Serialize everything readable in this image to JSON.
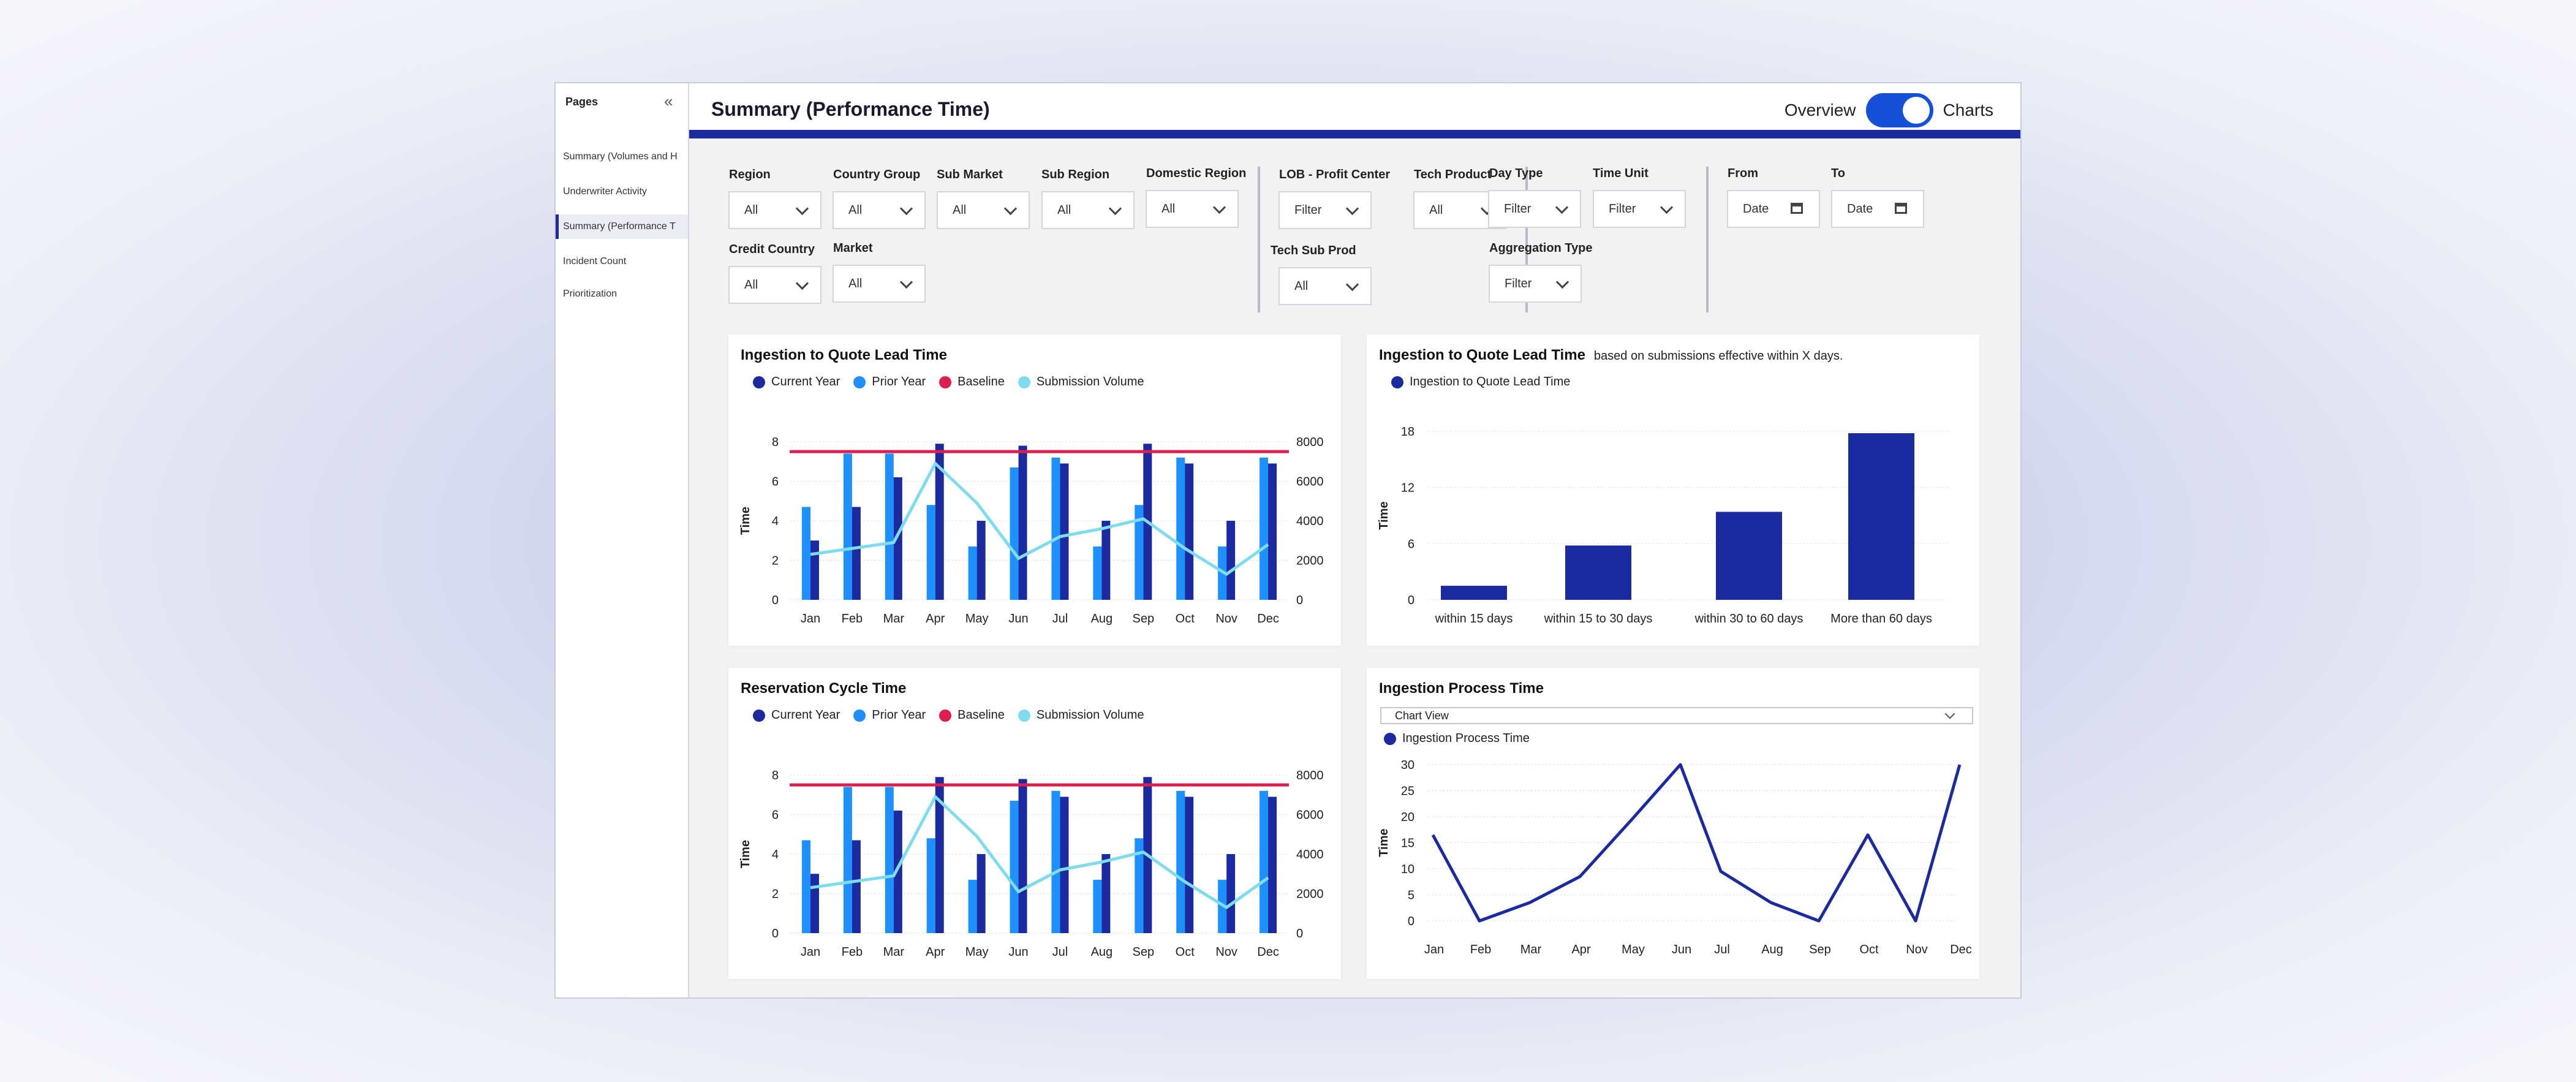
{
  "sidebar": {
    "title": "Pages",
    "items": [
      {
        "label": "Summary (Volumes and H",
        "active": false
      },
      {
        "label": "Underwriter Activity",
        "active": false
      },
      {
        "label": "Summary (Performance T",
        "active": true
      },
      {
        "label": "Incident Count",
        "active": false
      },
      {
        "label": "Prioritization",
        "active": false
      }
    ]
  },
  "header": {
    "title": "Summary (Performance Time)",
    "toggle_left": "Overview",
    "toggle_right": "Charts"
  },
  "filters": {
    "region": {
      "label": "Region",
      "value": "All"
    },
    "country_group": {
      "label": "Country Group",
      "value": "All"
    },
    "sub_market": {
      "label": "Sub Market",
      "value": "All"
    },
    "sub_region": {
      "label": "Sub Region",
      "value": "All"
    },
    "domestic_region": {
      "label": "Domestic Region",
      "value": "All"
    },
    "credit_country": {
      "label": "Credit Country",
      "value": "All"
    },
    "market": {
      "label": "Market",
      "value": "All"
    },
    "lob": {
      "label": "LOB - Profit Center",
      "value": "Filter"
    },
    "tech_product": {
      "label": "Tech Product",
      "value": "All"
    },
    "tech_sub_prod": {
      "label": "Tech Sub Prod",
      "value": "All"
    },
    "day_type": {
      "label": "Day Type",
      "value": "Filter"
    },
    "time_unit": {
      "label": "Time Unit",
      "value": "Filter"
    },
    "aggregation_type": {
      "label": "Aggregation Type",
      "value": "Filter"
    },
    "from": {
      "label": "From",
      "value": "Date"
    },
    "to": {
      "label": "To",
      "value": "Date"
    }
  },
  "colors": {
    "current_year": "#1b2a9e",
    "prior_year": "#1e90ff",
    "baseline": "#dc1f4e",
    "volume": "#7fdcec",
    "accent": "#1b2a9e"
  },
  "cards": {
    "lead_time": {
      "title": "Ingestion to Quote Lead Time"
    },
    "lead_time_bucket": {
      "title": "Ingestion to Quote Lead Time",
      "subtitle": "based on submissions effective within X days."
    },
    "reservation": {
      "title": "Reservation Cycle Time"
    },
    "ingestion_process": {
      "title": "Ingestion Process Time",
      "dropdown": "Chart View"
    }
  },
  "chart_data": [
    {
      "id": "lead_time",
      "type": "bar",
      "title": "Ingestion to Quote Lead Time",
      "ylabel": "Time",
      "ylim": [
        0,
        8
      ],
      "yticks": [
        "0",
        "2",
        "4",
        "6",
        "8"
      ],
      "y2lim": [
        0,
        8000
      ],
      "y2ticks": [
        "0",
        "2000",
        "4000",
        "6000",
        "8000"
      ],
      "legend": [
        "Current Year",
        "Prior Year",
        "Baseline",
        "Submission Volume"
      ],
      "categories": [
        "Jan",
        "Feb",
        "Mar",
        "Apr",
        "May",
        "Jun",
        "Jul",
        "Aug",
        "Sep",
        "Oct",
        "Nov",
        "Dec"
      ],
      "series": [
        {
          "name": "Prior Year",
          "values": [
            4.7,
            7.4,
            7.4,
            4.8,
            2.7,
            6.7,
            7.2,
            2.7,
            4.8,
            7.2,
            2.7,
            7.2
          ]
        },
        {
          "name": "Current Year",
          "values": [
            3.0,
            4.7,
            6.2,
            7.9,
            4.0,
            7.8,
            6.9,
            4.0,
            7.9,
            6.9,
            4.0,
            6.9
          ]
        },
        {
          "name": "Baseline",
          "values": [
            7.5,
            7.5,
            7.5,
            7.5,
            7.5,
            7.5,
            7.5,
            7.5,
            7.5,
            7.5,
            7.5,
            7.5
          ]
        },
        {
          "name": "Submission Volume",
          "axis": "right",
          "values": [
            2300,
            2600,
            2900,
            6900,
            4900,
            2100,
            3200,
            3600,
            4100,
            2600,
            1300,
            2800
          ]
        }
      ]
    },
    {
      "id": "lead_time_bucket",
      "type": "bar",
      "title": "Ingestion to Quote Lead Time",
      "ylabel": "Time",
      "ylim": [
        0,
        18
      ],
      "yticks": [
        "0",
        "6",
        "12",
        "18"
      ],
      "legend": [
        "Ingestion to Quote Lead Time"
      ],
      "categories": [
        "within 15 days",
        "within 15 to 30 days",
        "within 30 to 60 days",
        "More than 60 days"
      ],
      "series": [
        {
          "name": "Ingestion to Quote Lead Time",
          "values": [
            1.5,
            5.8,
            9.4,
            17.8
          ]
        }
      ]
    },
    {
      "id": "reservation",
      "type": "bar",
      "title": "Reservation Cycle Time",
      "ylabel": "Time",
      "ylim": [
        0,
        8
      ],
      "yticks": [
        "0",
        "2",
        "4",
        "6",
        "8"
      ],
      "y2lim": [
        0,
        8000
      ],
      "y2ticks": [
        "0",
        "2000",
        "4000",
        "6000",
        "8000"
      ],
      "legend": [
        "Current Year",
        "Prior Year",
        "Baseline",
        "Submission Volume"
      ],
      "categories": [
        "Jan",
        "Feb",
        "Mar",
        "Apr",
        "May",
        "Jun",
        "Jul",
        "Aug",
        "Sep",
        "Oct",
        "Nov",
        "Dec"
      ],
      "series": [
        {
          "name": "Prior Year",
          "values": [
            4.7,
            7.4,
            7.4,
            4.8,
            2.7,
            6.7,
            7.2,
            2.7,
            4.8,
            7.2,
            2.7,
            7.2
          ]
        },
        {
          "name": "Current Year",
          "values": [
            3.0,
            4.7,
            6.2,
            7.9,
            4.0,
            7.8,
            6.9,
            4.0,
            7.9,
            6.9,
            4.0,
            6.9
          ]
        },
        {
          "name": "Baseline",
          "values": [
            7.5,
            7.5,
            7.5,
            7.5,
            7.5,
            7.5,
            7.5,
            7.5,
            7.5,
            7.5,
            7.5,
            7.5
          ]
        },
        {
          "name": "Submission Volume",
          "axis": "right",
          "values": [
            2300,
            2600,
            2900,
            6900,
            4900,
            2100,
            3200,
            3600,
            4100,
            2600,
            1300,
            2800
          ]
        }
      ]
    },
    {
      "id": "ingestion_process",
      "type": "line",
      "title": "Ingestion Process Time",
      "ylabel": "Time",
      "ylim": [
        0,
        30
      ],
      "yticks": [
        "0",
        "5",
        "10",
        "15",
        "20",
        "25",
        "30"
      ],
      "legend": [
        "Ingestion Process Time"
      ],
      "categories": [
        "Jan",
        "Feb",
        "Mar",
        "Apr",
        "May",
        "Jun",
        "Jul",
        "Aug",
        "Sep",
        "Oct",
        "Nov",
        "Dec"
      ],
      "series": [
        {
          "name": "Ingestion Process Time",
          "values": [
            16.5,
            0,
            3.5,
            8.5,
            19.5,
            30,
            9.5,
            3.5,
            0,
            16.5,
            0,
            30
          ]
        }
      ]
    }
  ]
}
